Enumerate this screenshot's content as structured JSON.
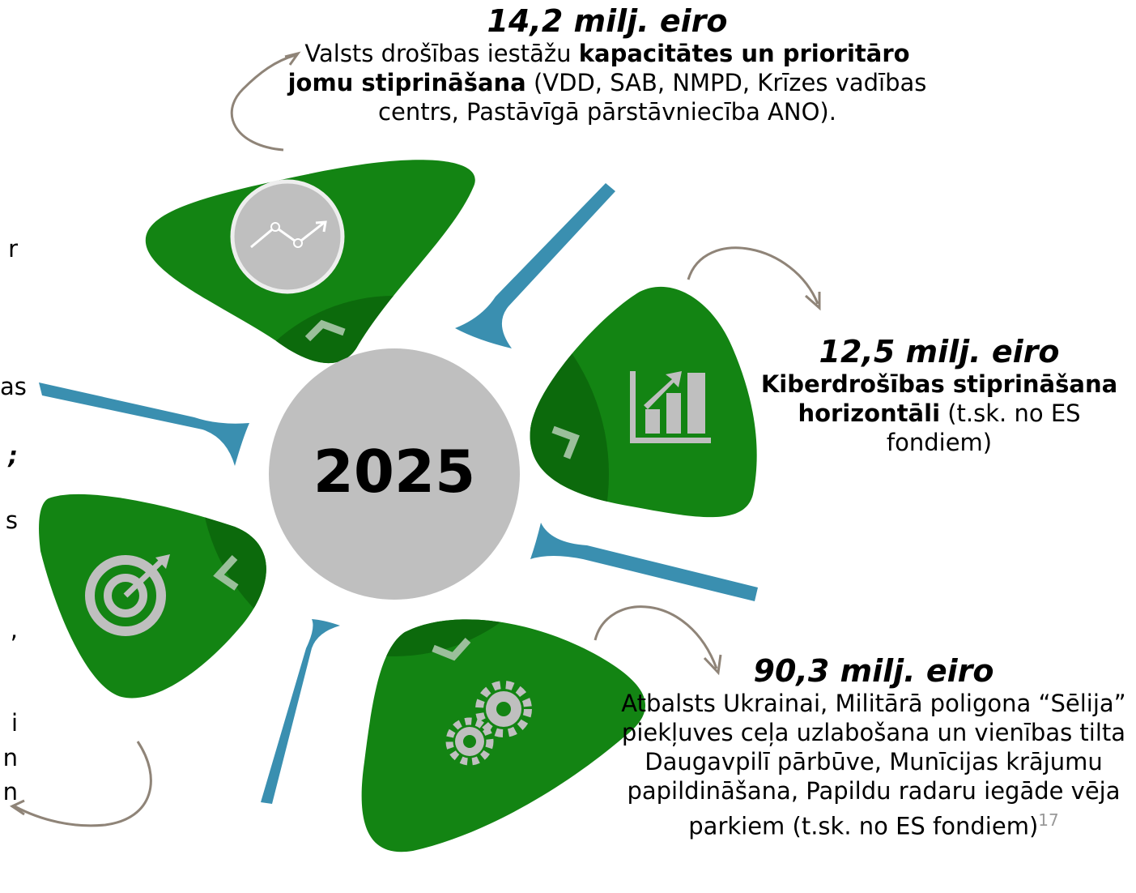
{
  "year": "2025",
  "blocks": [
    {
      "heading": "14,2 milj. eiro",
      "text": [
        {
          "normal": "Valsts drošības iestāžu "
        },
        {
          "bold": "kapacitātes un prioritāro jomu stiprināšana"
        },
        {
          "normal": " (VDD, SAB, NMPD, Krīzes vadības centrs, Pastāvīgā pārstāvniecība ANO)."
        }
      ]
    },
    {
      "heading": "12,5 milj. eiro",
      "text": [
        {
          "bold": "Kiberdrošības stiprināšana horizontāli"
        },
        {
          "normal": " (t.sk. no ES fondiem)"
        }
      ]
    },
    {
      "heading": "90,3 milj. eiro",
      "text": [
        {
          "normal": "Atbalsts Ukrainai, Militārā poligona “Sēlija” piekļuves ceļa uzlabošana un vienības tilta Daugavpilī pārbūve, Munīcijas krājumu papildināšana, Papildu radaru iegāde vēja parkiem (t.sk. no ES fondiem)"
        },
        {
          "sup": "17"
        }
      ]
    }
  ],
  "left_fragments": [
    {
      "normal": "r"
    },
    {
      "normal": "as"
    },
    {
      "bold": ";"
    },
    {
      "normal": "s"
    },
    {
      "normal": ","
    },
    {
      "normal": "i"
    },
    {
      "normal": "n"
    },
    {
      "normal": "n"
    }
  ]
}
